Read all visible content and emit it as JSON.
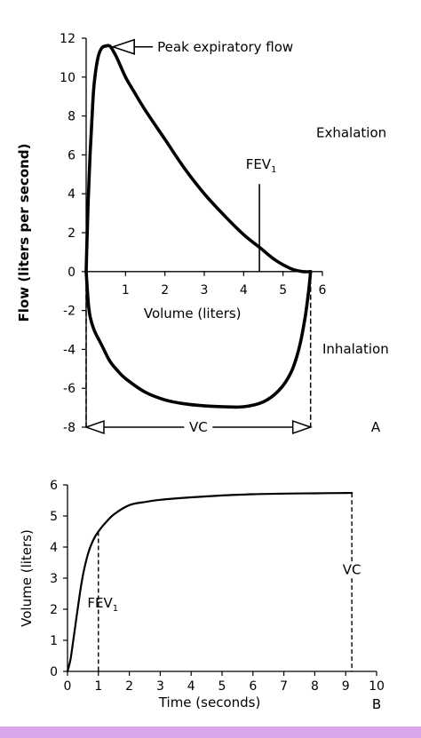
{
  "chart_data": [
    {
      "panel_letter": "A",
      "type": "line",
      "xlabel": "Volume (liters)",
      "ylabel": "Flow (liters per second)",
      "xlim": [
        0,
        6
      ],
      "ylim": [
        -8,
        12
      ],
      "xticks": [
        1,
        2,
        3,
        4,
        5,
        6
      ],
      "yticks": [
        12,
        10,
        8,
        6,
        4,
        2,
        0,
        -2,
        -4,
        -6,
        -8
      ],
      "grid": false,
      "series": [
        {
          "x": [
            0.0,
            0.02,
            0.05,
            0.1,
            0.15,
            0.2,
            0.3,
            0.4,
            0.5,
            0.6,
            0.7,
            0.8,
            1.0,
            1.2,
            1.5,
            2.0,
            2.5,
            3.0,
            3.5,
            4.0,
            4.4,
            4.8,
            5.2,
            5.5,
            5.7
          ],
          "y": [
            0.0,
            1.5,
            3.5,
            6.0,
            8.0,
            9.6,
            11.0,
            11.5,
            11.6,
            11.6,
            11.3,
            10.9,
            10.0,
            9.3,
            8.3,
            6.8,
            5.3,
            4.0,
            2.9,
            1.9,
            1.25,
            0.6,
            0.15,
            0.0,
            0.0
          ]
        },
        {
          "x": [
            0.0,
            0.05,
            0.1,
            0.2,
            0.4,
            0.6,
            0.8,
            1.0,
            1.5,
            2.0,
            2.5,
            3.0,
            3.5,
            4.0,
            4.5,
            4.9,
            5.2,
            5.4,
            5.55,
            5.65,
            5.7
          ],
          "y": [
            0.0,
            -1.5,
            -2.3,
            -3.0,
            -3.8,
            -4.6,
            -5.1,
            -5.5,
            -6.2,
            -6.6,
            -6.8,
            -6.9,
            -6.95,
            -6.95,
            -6.7,
            -6.1,
            -5.2,
            -4.0,
            -2.5,
            -1.0,
            0.0
          ]
        }
      ],
      "annotations": {
        "pef_label": "Peak expiratory flow",
        "fev1_label": "FEV",
        "fev1_subscript": "1",
        "fev1_x": 4.4,
        "vc_label": "VC",
        "vc_range": [
          0,
          5.7
        ],
        "exhalation_label": "Exhalation",
        "inhalation_label": "Inhalation"
      }
    },
    {
      "panel_letter": "B",
      "type": "line",
      "xlabel": "Time (seconds)",
      "ylabel": "Volume (liters)",
      "xlim": [
        0,
        10
      ],
      "ylim": [
        0,
        6
      ],
      "xticks": [
        0,
        1,
        2,
        3,
        4,
        5,
        6,
        7,
        8,
        9,
        10
      ],
      "yticks": [
        0,
        1,
        2,
        3,
        4,
        5,
        6
      ],
      "grid": false,
      "series": [
        {
          "x": [
            0.0,
            0.1,
            0.2,
            0.3,
            0.4,
            0.5,
            0.6,
            0.7,
            0.8,
            0.9,
            1.0,
            1.2,
            1.5,
            2.0,
            2.5,
            3.0,
            4.0,
            5.0,
            6.0,
            7.0,
            8.0,
            9.0,
            9.2
          ],
          "y": [
            0.0,
            0.4,
            1.1,
            1.8,
            2.5,
            3.1,
            3.55,
            3.9,
            4.15,
            4.35,
            4.5,
            4.75,
            5.05,
            5.35,
            5.45,
            5.52,
            5.6,
            5.66,
            5.7,
            5.72,
            5.73,
            5.74,
            5.74
          ]
        }
      ],
      "annotations": {
        "fev1_label": "FEV",
        "fev1_subscript": "1",
        "fev1_x": 1.0,
        "vc_label": "VC",
        "vc_x": 9.2
      }
    }
  ],
  "colors": {
    "line": "#000000",
    "background": "#ffffff",
    "bottom_bar": "#d9a6ea"
  }
}
